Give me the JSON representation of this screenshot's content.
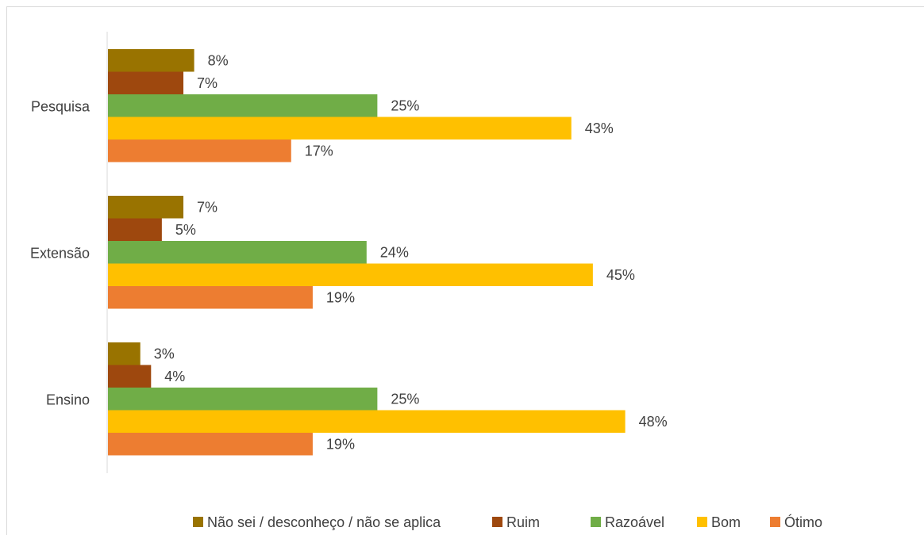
{
  "chart_data": {
    "type": "bar",
    "orientation": "horizontal",
    "categories": [
      "Pesquisa",
      "Extensão",
      "Ensino"
    ],
    "series": [
      {
        "name": "Não sei / desconheço / não se aplica",
        "color": "#997300",
        "values": [
          8,
          7,
          3
        ],
        "labels": [
          "8%",
          "7%",
          "3%"
        ]
      },
      {
        "name": "Ruim",
        "color": "#9e480e",
        "values": [
          7,
          5,
          4
        ],
        "labels": [
          "7%",
          "5%",
          "4%"
        ]
      },
      {
        "name": "Razoável",
        "color": "#70ad47",
        "values": [
          25,
          24,
          25
        ],
        "labels": [
          "25%",
          "24%",
          "25%"
        ]
      },
      {
        "name": "Bom",
        "color": "#ffc000",
        "values": [
          43,
          45,
          48
        ],
        "labels": [
          "43%",
          "45%",
          "48%"
        ]
      },
      {
        "name": "Ótimo",
        "color": "#ed7d31",
        "values": [
          17,
          19,
          19
        ],
        "labels": [
          "17%",
          "19%",
          "19%"
        ]
      }
    ],
    "xlim": [
      0,
      60
    ],
    "value_format": "percent",
    "title": "",
    "xlabel": "",
    "ylabel": "",
    "grid": false,
    "legend_position": "bottom"
  }
}
